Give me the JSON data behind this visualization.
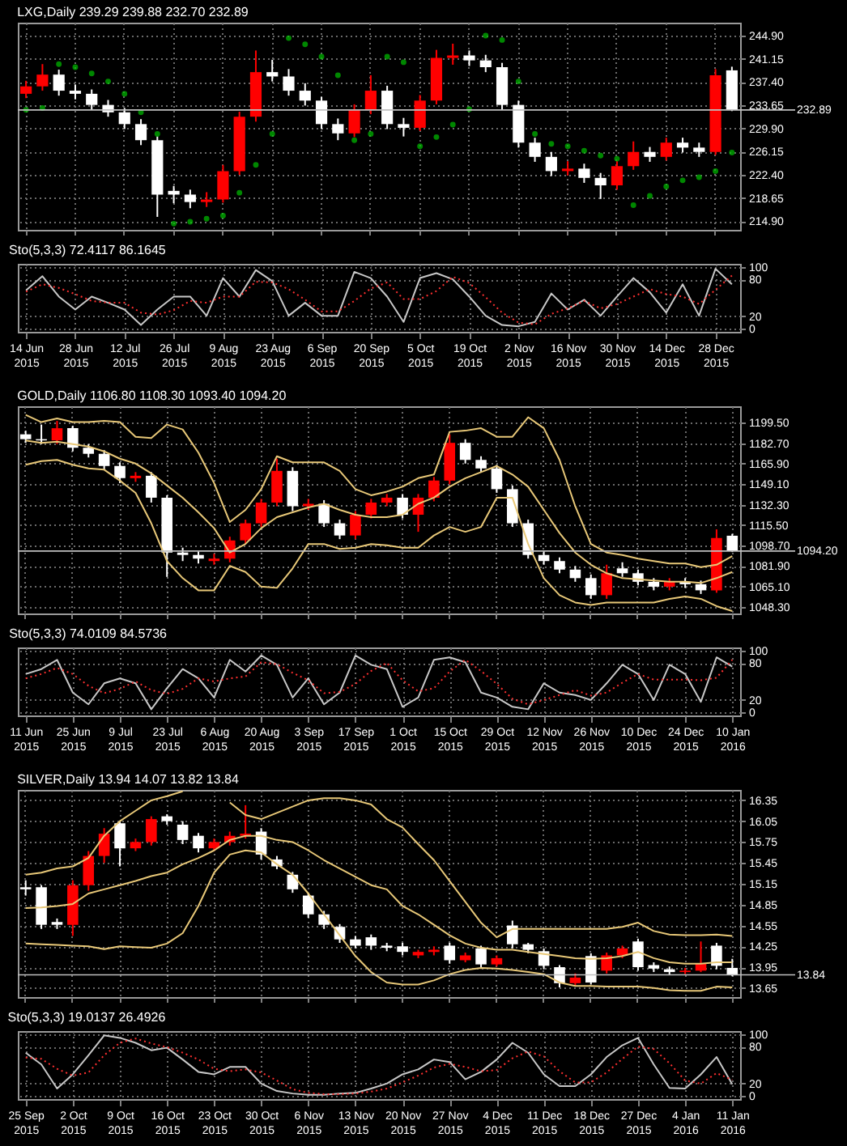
{
  "chart_data": [
    {
      "type": "candlestick",
      "title": "LXG,Daily 239.29 239.88 232.70 232.89",
      "tick_labels": "y",
      "grid": true,
      "categories": [
        null,
        null,
        null,
        null,
        null,
        null,
        null,
        null,
        null,
        null,
        null,
        null,
        null,
        null,
        null,
        null,
        null,
        null,
        null,
        null,
        null,
        null,
        null,
        null,
        null,
        null,
        null,
        null,
        null,
        null,
        null,
        null,
        null,
        null,
        null,
        null,
        null,
        null,
        null,
        null,
        null,
        null,
        null,
        null
      ],
      "ohlc": [
        [
          235.5,
          237.6,
          234.8,
          236.7
        ],
        [
          236.7,
          240.3,
          236.0,
          238.6
        ],
        [
          238.6,
          239.4,
          235.2,
          236.0
        ],
        [
          236.0,
          237.0,
          234.6,
          235.5
        ],
        [
          235.5,
          236.2,
          232.9,
          233.7
        ],
        [
          233.7,
          234.5,
          231.8,
          232.5
        ],
        [
          232.5,
          233.2,
          229.8,
          230.6
        ],
        [
          230.6,
          231.4,
          227.2,
          228.0
        ],
        [
          228.0,
          228.6,
          215.6,
          219.2
        ],
        [
          219.8,
          220.6,
          217.8,
          219.2
        ],
        [
          219.2,
          220.0,
          217.0,
          218.0
        ],
        [
          218.0,
          219.6,
          217.2,
          218.4
        ],
        [
          218.4,
          224.0,
          217.9,
          223.0
        ],
        [
          223.0,
          232.6,
          222.4,
          231.8
        ],
        [
          231.8,
          242.5,
          231.0,
          239.0
        ],
        [
          239.0,
          241.0,
          237.5,
          238.3
        ],
        [
          238.3,
          239.5,
          235.2,
          236.0
        ],
        [
          236.0,
          237.2,
          233.6,
          234.4
        ],
        [
          234.4,
          235.0,
          229.8,
          230.6
        ],
        [
          230.6,
          231.5,
          228.0,
          229.1
        ],
        [
          229.1,
          233.8,
          228.5,
          232.9
        ],
        [
          232.9,
          238.5,
          232.2,
          236.0
        ],
        [
          236.0,
          236.8,
          229.8,
          230.6
        ],
        [
          230.6,
          231.6,
          228.6,
          230.0
        ],
        [
          230.0,
          235.3,
          229.5,
          234.4
        ],
        [
          234.4,
          242.6,
          233.8,
          241.3
        ],
        [
          241.3,
          243.6,
          240.2,
          241.7
        ],
        [
          241.7,
          242.5,
          240.0,
          240.9
        ],
        [
          240.9,
          241.8,
          239.0,
          239.8
        ],
        [
          239.8,
          240.5,
          232.9,
          233.7
        ],
        [
          233.7,
          234.4,
          226.8,
          227.6
        ],
        [
          227.6,
          228.4,
          224.5,
          225.3
        ],
        [
          225.3,
          226.1,
          222.2,
          223.0
        ],
        [
          223.0,
          224.6,
          222.3,
          223.4
        ],
        [
          223.4,
          224.2,
          221.1,
          221.9
        ],
        [
          221.9,
          222.7,
          218.5,
          220.7
        ],
        [
          220.7,
          224.6,
          220.0,
          223.8
        ],
        [
          223.8,
          227.8,
          223.2,
          226.1
        ],
        [
          226.1,
          226.9,
          224.5,
          225.3
        ],
        [
          225.3,
          228.4,
          224.7,
          227.6
        ],
        [
          227.6,
          228.4,
          226.0,
          226.8
        ],
        [
          226.8,
          227.6,
          225.3,
          226.1
        ],
        [
          226.1,
          239.5,
          225.6,
          238.5
        ],
        [
          239.29,
          239.88,
          232.7,
          232.89
        ]
      ],
      "colors": [
        "#ff0000",
        "#ff0000",
        "#ffffff",
        "#ffffff",
        "#ffffff",
        "#ffffff",
        "#ffffff",
        "#ffffff",
        "#ffffff",
        "#ffffff",
        "#ffffff",
        "#ff0000",
        "#ff0000",
        "#ff0000",
        "#ff0000",
        "#ffffff",
        "#ffffff",
        "#ffffff",
        "#ffffff",
        "#ffffff",
        "#ff0000",
        "#ff0000",
        "#ffffff",
        "#ffffff",
        "#ff0000",
        "#ff0000",
        "#ff0000",
        "#ffffff",
        "#ffffff",
        "#ffffff",
        "#ffffff",
        "#ffffff",
        "#ffffff",
        "#ff0000",
        "#ffffff",
        "#ffffff",
        "#ff0000",
        "#ff0000",
        "#ffffff",
        "#ff0000",
        "#ffffff",
        "#ffffff",
        "#ff0000",
        "#ffffff"
      ],
      "series": [
        {
          "type": "scatter",
          "marker": "circle",
          "color": "#00c000",
          "values": [
            232.9,
            233.2,
            240.3,
            239.8,
            238.8,
            237.5,
            235.5,
            232.5,
            229.0,
            214.5,
            214.8,
            215.3,
            215.8,
            219.5,
            224.0,
            229.0,
            244.5,
            243.5,
            241.5,
            238.5,
            228.0,
            229.0,
            241.5,
            240.6,
            227.0,
            228.5,
            230.5,
            233.0,
            244.9,
            244.2,
            237.5,
            229.0,
            227.4,
            227.0,
            226.3,
            225.5,
            225.0,
            217.5,
            219.0,
            220.5,
            221.5,
            222.0,
            223.0,
            226.0
          ]
        }
      ],
      "ylim": [
        213.5,
        247
      ],
      "yticks": [
        {
          "value": 214.9,
          "label": "214.90"
        },
        {
          "value": 218.65,
          "label": "218.65"
        },
        {
          "value": 222.4,
          "label": "222.40"
        },
        {
          "value": 226.15,
          "label": "226.15"
        },
        {
          "value": 229.9,
          "label": "229.90"
        },
        {
          "value": 233.65,
          "label": "233.65"
        },
        {
          "value": 237.4,
          "label": "237.40"
        },
        {
          "value": 241.15,
          "label": "241.15"
        },
        {
          "value": 244.9,
          "label": "244.90"
        }
      ],
      "ref_lines": [
        {
          "axis": "y",
          "value": 232.89,
          "label": "232.89",
          "color": "#c0c0c0"
        }
      ]
    },
    {
      "type": "line",
      "title": "Sto(5,3,3) 72.4117 86.1645",
      "grid": true,
      "categories": [
        "14 Jun 2015",
        null,
        null,
        "28 Jun 2015",
        null,
        null,
        "12 Jul 2015",
        null,
        null,
        "26 Jul 2015",
        null,
        null,
        "9 Aug 2015",
        null,
        null,
        "23 Aug 2015",
        null,
        null,
        "6 Sep 2015",
        null,
        null,
        "20 Sep 2015",
        null,
        null,
        "5 Oct 2015",
        null,
        null,
        "19 Oct 2015",
        null,
        null,
        "2 Nov 2015",
        null,
        null,
        "16 Nov 2015",
        null,
        null,
        "30 Nov 2015",
        null,
        null,
        "14 Dec 2015",
        null,
        null,
        "28 Dec 2015",
        null
      ],
      "series": [
        {
          "color": "#c8c8c8",
          "line_style": "solid",
          "values": [
            62,
            85,
            52,
            31,
            52,
            42,
            31,
            6,
            31,
            52,
            52,
            21,
            82,
            52,
            95,
            77,
            21,
            42,
            21,
            21,
            92,
            82,
            52,
            11,
            82,
            90,
            80,
            52,
            21,
            6,
            4,
            11,
            57,
            31,
            47,
            21,
            52,
            82,
            59,
            26,
            72,
            21,
            97,
            72
          ]
        },
        {
          "color": "#ff3030",
          "line_style": "dotted",
          "values": [
            60,
            72,
            66,
            56,
            45,
            42,
            42,
            26,
            23,
            30,
            45,
            42,
            52,
            52,
            76,
            75,
            64,
            47,
            28,
            28,
            45,
            65,
            75,
            48,
            48,
            61,
            84,
            74,
            51,
            26,
            10,
            7,
            24,
            33,
            45,
            33,
            40,
            52,
            64,
            56,
            52,
            40,
            63,
            86
          ]
        }
      ],
      "ylim": [
        -5,
        105
      ],
      "yticks": [
        0,
        20,
        80,
        100
      ]
    },
    {
      "type": "candlestick",
      "title": "GOLD,Daily 1106.80 1108.30 1093.40 1094.20",
      "tick_labels": "y",
      "grid": true,
      "categories": [
        null,
        null,
        null,
        null,
        null,
        null,
        null,
        null,
        null,
        null,
        null,
        null,
        null,
        null,
        null,
        null,
        null,
        null,
        null,
        null,
        null,
        null,
        null,
        null,
        null,
        null,
        null,
        null,
        null,
        null,
        null,
        null,
        null,
        null,
        null,
        null,
        null,
        null,
        null,
        null,
        null,
        null,
        null,
        null,
        null,
        null
      ],
      "ohlc": [
        [
          1190,
          1193,
          1183,
          1186
        ],
        [
          1186,
          1198,
          1182,
          1185
        ],
        [
          1185,
          1201,
          1182,
          1195
        ],
        [
          1195,
          1197,
          1176,
          1179
        ],
        [
          1179,
          1182,
          1171,
          1174
        ],
        [
          1174,
          1177,
          1161,
          1164
        ],
        [
          1164,
          1167,
          1150,
          1154
        ],
        [
          1154,
          1159,
          1151,
          1156
        ],
        [
          1156,
          1159,
          1134,
          1138
        ],
        [
          1138,
          1140,
          1073,
          1093
        ],
        [
          1093,
          1097,
          1086,
          1091
        ],
        [
          1091,
          1094,
          1084,
          1088
        ],
        [
          1086,
          1092,
          1083,
          1088
        ],
        [
          1088,
          1106,
          1085,
          1103
        ],
        [
          1103,
          1120,
          1100,
          1117
        ],
        [
          1117,
          1137,
          1114,
          1134
        ],
        [
          1134,
          1170,
          1131,
          1160
        ],
        [
          1160,
          1163,
          1127,
          1131
        ],
        [
          1131,
          1137,
          1128,
          1133
        ],
        [
          1133,
          1136,
          1114,
          1117
        ],
        [
          1117,
          1120,
          1104,
          1107
        ],
        [
          1107,
          1127,
          1104,
          1124
        ],
        [
          1124,
          1137,
          1121,
          1134
        ],
        [
          1134,
          1141,
          1131,
          1138
        ],
        [
          1138,
          1141,
          1121,
          1124
        ],
        [
          1124,
          1141,
          1110,
          1138
        ],
        [
          1138,
          1155,
          1135,
          1152
        ],
        [
          1152,
          1190,
          1149,
          1183
        ],
        [
          1183,
          1186,
          1166,
          1169
        ],
        [
          1169,
          1172,
          1159,
          1162
        ],
        [
          1162,
          1165,
          1142,
          1145
        ],
        [
          1145,
          1148,
          1114,
          1117
        ],
        [
          1117,
          1120,
          1088,
          1091
        ],
        [
          1091,
          1094,
          1083,
          1086
        ],
        [
          1086,
          1089,
          1076,
          1079
        ],
        [
          1079,
          1082,
          1069,
          1072
        ],
        [
          1072,
          1075,
          1055,
          1058
        ],
        [
          1058,
          1083,
          1055,
          1076
        ],
        [
          1080,
          1085,
          1073,
          1076
        ],
        [
          1076,
          1079,
          1066,
          1069
        ],
        [
          1069,
          1072,
          1062,
          1065
        ],
        [
          1065,
          1072,
          1062,
          1069
        ],
        [
          1069,
          1072,
          1064,
          1067
        ],
        [
          1067,
          1070,
          1059,
          1062
        ],
        [
          1062,
          1112,
          1060,
          1105
        ],
        [
          1106.8,
          1108.3,
          1093.4,
          1094.2
        ]
      ],
      "colors": [
        "#ffffff",
        "#ffffff",
        "#ff0000",
        "#ffffff",
        "#ffffff",
        "#ffffff",
        "#ffffff",
        "#ff0000",
        "#ffffff",
        "#ffffff",
        "#ffffff",
        "#ffffff",
        "#ff0000",
        "#ff0000",
        "#ff0000",
        "#ff0000",
        "#ff0000",
        "#ffffff",
        "#ff0000",
        "#ffffff",
        "#ffffff",
        "#ff0000",
        "#ff0000",
        "#ff0000",
        "#ffffff",
        "#ff0000",
        "#ff0000",
        "#ff0000",
        "#ffffff",
        "#ffffff",
        "#ffffff",
        "#ffffff",
        "#ffffff",
        "#ffffff",
        "#ffffff",
        "#ffffff",
        "#ffffff",
        "#ff0000",
        "#ffffff",
        "#ffffff",
        "#ffffff",
        "#ff0000",
        "#ffffff",
        "#ffffff",
        "#ff0000",
        "#ffffff"
      ],
      "series": [
        {
          "type": "line",
          "color": "#e8c878",
          "values": [
            1206,
            1200,
            1203,
            1200,
            1200,
            1201,
            1200,
            1188,
            1187,
            1198,
            1194,
            1175,
            1150,
            1118,
            1128,
            1145,
            1172,
            1167,
            1167,
            1167,
            1160,
            1145,
            1140,
            1143,
            1147,
            1154,
            1157,
            1192,
            1193,
            1195,
            1188,
            1188,
            1204,
            1195,
            1169,
            1131,
            1100,
            1093,
            1091,
            1088,
            1086,
            1084,
            1084,
            1081,
            1083,
            1090
          ]
        },
        {
          "type": "line",
          "color": "#e8c878",
          "values": [
            1185,
            1183,
            1184,
            1182,
            1180,
            1176,
            1170,
            1166,
            1158,
            1148,
            1138,
            1126,
            1113,
            1093,
            1100,
            1113,
            1122,
            1126,
            1130,
            1133,
            1128,
            1124,
            1122,
            1122,
            1124,
            1133,
            1138,
            1147,
            1154,
            1159,
            1164,
            1157,
            1147,
            1128,
            1109,
            1093,
            1083,
            1076,
            1072,
            1071,
            1070,
            1069,
            1069,
            1068,
            1072,
            1077
          ]
        },
        {
          "type": "line",
          "color": "#e8c878",
          "values": [
            1165,
            1168,
            1169,
            1165,
            1162,
            1161,
            1152,
            1142,
            1117,
            1086,
            1072,
            1062,
            1062,
            1082,
            1077,
            1065,
            1064,
            1080,
            1100,
            1100,
            1096,
            1097,
            1100,
            1099,
            1097,
            1097,
            1107,
            1114,
            1110,
            1114,
            1138,
            1138,
            1100,
            1072,
            1058,
            1052,
            1050,
            1052,
            1052,
            1052,
            1052,
            1055,
            1057,
            1055,
            1049,
            1045
          ]
        }
      ],
      "ylim": [
        1043,
        1213
      ],
      "yticks": [
        {
          "value": 1048.3,
          "label": "1048.30"
        },
        {
          "value": 1065.1,
          "label": "1065.10"
        },
        {
          "value": 1081.9,
          "label": "1081.90"
        },
        {
          "value": 1098.7,
          "label": "1098.70"
        },
        {
          "value": 1115.5,
          "label": "1115.50"
        },
        {
          "value": 1132.3,
          "label": "1132.30"
        },
        {
          "value": 1149.1,
          "label": "1149.10"
        },
        {
          "value": 1165.9,
          "label": "1165.90"
        },
        {
          "value": 1182.7,
          "label": "1182.70"
        },
        {
          "value": 1199.5,
          "label": "1199.50"
        }
      ],
      "ref_lines": [
        {
          "axis": "y",
          "value": 1094.2,
          "label": "1094.20",
          "color": "#c0c0c0"
        }
      ]
    },
    {
      "type": "line",
      "title": "Sto(5,3,3) 74.0109 84.5736",
      "grid": true,
      "categories": [
        "11 Jun 2015",
        null,
        null,
        "25 Jun 2015",
        null,
        null,
        "9 Jul 2015",
        null,
        null,
        "23 Jul 2015",
        null,
        null,
        "6 Aug 2015",
        null,
        null,
        "20 Aug 2015",
        null,
        null,
        "3 Sep 2015",
        null,
        null,
        "17 Sep 2015",
        null,
        null,
        "1 Oct 2015",
        null,
        null,
        "15 Oct 2015",
        null,
        null,
        "29 Oct 2015",
        null,
        null,
        "12 Nov 2015",
        null,
        null,
        "26 Nov 2015",
        null,
        null,
        "10 Dec 2015",
        null,
        null,
        "24 Dec 2015",
        null,
        null,
        "10 Jan 2016"
      ],
      "series": [
        {
          "color": "#c8c8c8",
          "line_style": "solid",
          "values": [
            62,
            70,
            85,
            32,
            13,
            47,
            55,
            47,
            5,
            39,
            70,
            55,
            24,
            85,
            66,
            92,
            77,
            24,
            55,
            13,
            32,
            92,
            77,
            70,
            9,
            24,
            85,
            89,
            81,
            32,
            24,
            9,
            5,
            47,
            32,
            28,
            20,
            47,
            77,
            62,
            20,
            77,
            62,
            17,
            89,
            74
          ]
        },
        {
          "color": "#ff3030",
          "line_style": "dotted",
          "values": [
            55,
            62,
            72,
            62,
            43,
            31,
            38,
            50,
            36,
            30,
            38,
            55,
            50,
            55,
            58,
            81,
            78,
            64,
            52,
            31,
            33,
            46,
            67,
            80,
            52,
            34,
            39,
            66,
            85,
            67,
            46,
            22,
            13,
            20,
            28,
            36,
            27,
            32,
            48,
            62,
            53,
            53,
            53,
            52,
            56,
            85
          ]
        }
      ],
      "ylim": [
        -5,
        105
      ],
      "yticks": [
        0,
        20,
        80,
        100
      ]
    },
    {
      "type": "candlestick",
      "title": "SILVER,Daily 13.94 14.07 13.82 13.84",
      "tick_labels": "y",
      "grid": true,
      "categories": [
        null,
        null,
        null,
        null,
        null,
        null,
        null,
        null,
        null,
        null,
        null,
        null,
        null,
        null,
        null,
        null,
        null,
        null,
        null,
        null,
        null,
        null,
        null,
        null,
        null,
        null,
        null,
        null,
        null,
        null,
        null,
        null,
        null,
        null,
        null,
        null,
        null,
        null,
        null,
        null,
        null,
        null,
        null,
        null,
        null,
        null
      ],
      "ohlc": [
        [
          15.1,
          15.2,
          14.98,
          15.07
        ],
        [
          15.1,
          15.13,
          14.5,
          14.56
        ],
        [
          14.6,
          14.65,
          14.5,
          14.56
        ],
        [
          14.56,
          15.2,
          14.4,
          15.13
        ],
        [
          15.13,
          15.62,
          15.05,
          15.55
        ],
        [
          15.55,
          15.95,
          15.45,
          15.87
        ],
        [
          16.02,
          16.05,
          15.4,
          15.66
        ],
        [
          15.66,
          15.8,
          15.62,
          15.75
        ],
        [
          15.75,
          16.12,
          15.7,
          16.08
        ],
        [
          16.12,
          16.15,
          16.0,
          16.05
        ],
        [
          16.0,
          16.05,
          15.72,
          15.78
        ],
        [
          15.84,
          15.88,
          15.6,
          15.66
        ],
        [
          15.66,
          15.8,
          15.62,
          15.75
        ],
        [
          15.75,
          15.9,
          15.7,
          15.84
        ],
        [
          15.84,
          16.28,
          15.8,
          15.87
        ],
        [
          15.9,
          15.95,
          15.5,
          15.57
        ],
        [
          15.5,
          15.55,
          15.36,
          15.4
        ],
        [
          15.28,
          15.32,
          15.02,
          15.07
        ],
        [
          14.98,
          15.02,
          14.66,
          14.71
        ],
        [
          14.71,
          14.76,
          14.5,
          14.56
        ],
        [
          14.53,
          14.57,
          14.3,
          14.35
        ],
        [
          14.35,
          14.4,
          14.22,
          14.26
        ],
        [
          14.38,
          14.42,
          14.2,
          14.26
        ],
        [
          14.26,
          14.3,
          14.18,
          14.23
        ],
        [
          14.25,
          14.3,
          14.12,
          14.17
        ],
        [
          14.12,
          14.2,
          14.08,
          14.17
        ],
        [
          14.17,
          14.25,
          14.12,
          14.2
        ],
        [
          14.26,
          14.3,
          14.0,
          14.05
        ],
        [
          14.05,
          14.16,
          14.02,
          14.12
        ],
        [
          14.22,
          14.26,
          13.95,
          13.99
        ],
        [
          13.99,
          14.12,
          13.96,
          14.08
        ],
        [
          14.55,
          14.62,
          14.22,
          14.28
        ],
        [
          14.28,
          14.3,
          14.15,
          14.2
        ],
        [
          14.18,
          14.22,
          13.92,
          13.97
        ],
        [
          13.95,
          13.98,
          13.66,
          13.72
        ],
        [
          13.72,
          13.86,
          13.68,
          13.8
        ],
        [
          14.11,
          14.15,
          13.7,
          13.73
        ],
        [
          13.9,
          14.16,
          13.86,
          14.12
        ],
        [
          14.12,
          14.26,
          14.08,
          14.22
        ],
        [
          14.32,
          14.36,
          13.9,
          13.95
        ],
        [
          13.98,
          14.02,
          13.88,
          13.93
        ],
        [
          13.92,
          13.96,
          13.84,
          13.88
        ],
        [
          13.88,
          13.94,
          13.85,
          13.9
        ],
        [
          13.9,
          14.32,
          13.88,
          14.0
        ],
        [
          14.26,
          14.3,
          13.92,
          13.97
        ],
        [
          13.94,
          14.07,
          13.82,
          13.84
        ]
      ],
      "colors": [
        "#ffffff",
        "#ffffff",
        "#ffffff",
        "#ff0000",
        "#ff0000",
        "#ff0000",
        "#ffffff",
        "#ff0000",
        "#ff0000",
        "#ffffff",
        "#ffffff",
        "#ffffff",
        "#ff0000",
        "#ff0000",
        "#ff0000",
        "#ffffff",
        "#ffffff",
        "#ffffff",
        "#ffffff",
        "#ffffff",
        "#ffffff",
        "#ffffff",
        "#ffffff",
        "#ffffff",
        "#ffffff",
        "#ff0000",
        "#ff0000",
        "#ffffff",
        "#ff0000",
        "#ffffff",
        "#ff0000",
        "#ffffff",
        "#ffffff",
        "#ffffff",
        "#ffffff",
        "#ff0000",
        "#ffffff",
        "#ff0000",
        "#ff0000",
        "#ffffff",
        "#ffffff",
        "#ffffff",
        "#ff0000",
        "#ff0000",
        "#ffffff",
        "#ffffff"
      ],
      "series": [
        {
          "type": "line",
          "color": "#e8c878",
          "values": [
            15.28,
            15.31,
            15.37,
            15.4,
            15.52,
            15.84,
            16.05,
            16.2,
            16.35,
            16.41,
            16.48,
            null,
            null,
            16.32,
            16.14,
            16.08,
            16.17,
            16.26,
            16.35,
            16.38,
            16.38,
            16.35,
            16.29,
            16.08,
            15.96,
            15.72,
            15.49,
            15.19,
            14.89,
            14.59,
            14.38,
            14.5,
            14.5,
            14.5,
            14.5,
            14.5,
            14.5,
            14.5,
            14.53,
            14.59,
            14.47,
            14.42,
            14.41,
            14.41,
            14.42,
            14.4
          ]
        },
        {
          "type": "line",
          "color": "#e8c878",
          "values": [
            14.8,
            14.81,
            14.83,
            14.86,
            15.01,
            15.07,
            15.13,
            15.19,
            15.26,
            15.31,
            15.43,
            15.52,
            15.63,
            15.78,
            15.84,
            15.84,
            15.78,
            15.75,
            15.63,
            15.49,
            15.37,
            15.25,
            15.13,
            15.07,
            14.83,
            14.71,
            14.56,
            14.41,
            14.29,
            14.23,
            14.2,
            14.2,
            14.17,
            14.14,
            14.11,
            14.08,
            14.07,
            14.08,
            14.11,
            14.17,
            14.08,
            14.02,
            14.0,
            14.0,
            14.02,
            14.02
          ]
        },
        {
          "type": "line",
          "color": "#e8c878",
          "values": [
            14.29,
            14.28,
            14.27,
            14.26,
            14.25,
            14.21,
            14.25,
            14.24,
            14.23,
            14.29,
            14.44,
            14.83,
            15.31,
            15.57,
            15.63,
            15.6,
            15.43,
            15.28,
            15.01,
            14.71,
            14.41,
            14.11,
            13.88,
            13.73,
            13.7,
            13.7,
            13.76,
            13.85,
            13.91,
            13.94,
            13.93,
            13.91,
            13.88,
            13.85,
            13.73,
            13.68,
            13.68,
            13.67,
            13.67,
            13.67,
            13.65,
            13.62,
            13.61,
            13.61,
            13.67,
            13.66
          ]
        }
      ],
      "ylim": [
        13.52,
        16.5
      ],
      "yticks": [
        {
          "value": 13.65,
          "label": "13.65"
        },
        {
          "value": 13.95,
          "label": "13.95"
        },
        {
          "value": 14.25,
          "label": "14.25"
        },
        {
          "value": 14.55,
          "label": "14.55"
        },
        {
          "value": 14.85,
          "label": "14.85"
        },
        {
          "value": 15.15,
          "label": "15.15"
        },
        {
          "value": 15.45,
          "label": "15.45"
        },
        {
          "value": 15.75,
          "label": "15.75"
        },
        {
          "value": 16.05,
          "label": "16.05"
        },
        {
          "value": 16.35,
          "label": "16.35"
        }
      ],
      "ref_lines": [
        {
          "axis": "y",
          "value": 13.84,
          "label": "13.84",
          "color": "#c0c0c0"
        }
      ]
    },
    {
      "type": "line",
      "title": "Sto(5,3,3) 19.0137 26.4926",
      "grid": true,
      "categories": [
        "25 Sep 2015",
        null,
        null,
        "2 Oct 2015",
        null,
        null,
        "9 Oct 2015",
        null,
        null,
        "16 Oct 2015",
        null,
        null,
        "23 Oct 2015",
        null,
        null,
        "30 Oct 2015",
        null,
        null,
        "6 Nov 2015",
        null,
        null,
        "13 Nov 2015",
        null,
        null,
        "20 Nov 2015",
        null,
        null,
        "27 Nov 2015",
        null,
        null,
        "4 Dec 2015",
        null,
        null,
        "11 Dec 2015",
        null,
        null,
        "18 Dec 2015",
        null,
        null,
        "27 Dec 2015",
        null,
        null,
        "4 Jan 2016",
        null,
        null,
        "11 Jan 2016"
      ],
      "series": [
        {
          "color": "#c8c8c8",
          "line_style": "solid",
          "values": [
            70,
            51,
            12,
            35,
            66,
            98,
            94,
            86,
            74,
            78,
            59,
            39,
            35,
            47,
            47,
            20,
            8,
            4,
            2,
            2,
            4,
            5,
            12,
            20,
            35,
            43,
            59,
            55,
            27,
            39,
            59,
            86,
            70,
            35,
            16,
            16,
            35,
            63,
            82,
            94,
            51,
            13,
            12,
            35,
            63,
            19
          ]
        },
        {
          "color": "#ff3030",
          "line_style": "dotted",
          "values": [
            62,
            60,
            44,
            33,
            38,
            66,
            86,
            93,
            85,
            79,
            70,
            59,
            44,
            40,
            43,
            38,
            25,
            11,
            5,
            3,
            3,
            4,
            7,
            12,
            22,
            33,
            46,
            52,
            47,
            40,
            42,
            61,
            72,
            64,
            40,
            22,
            22,
            38,
            60,
            80,
            76,
            53,
            25,
            20,
            37,
            26
          ]
        }
      ],
      "ylim": [
        -5,
        105
      ],
      "yticks": [
        0,
        20,
        80,
        100
      ]
    }
  ]
}
